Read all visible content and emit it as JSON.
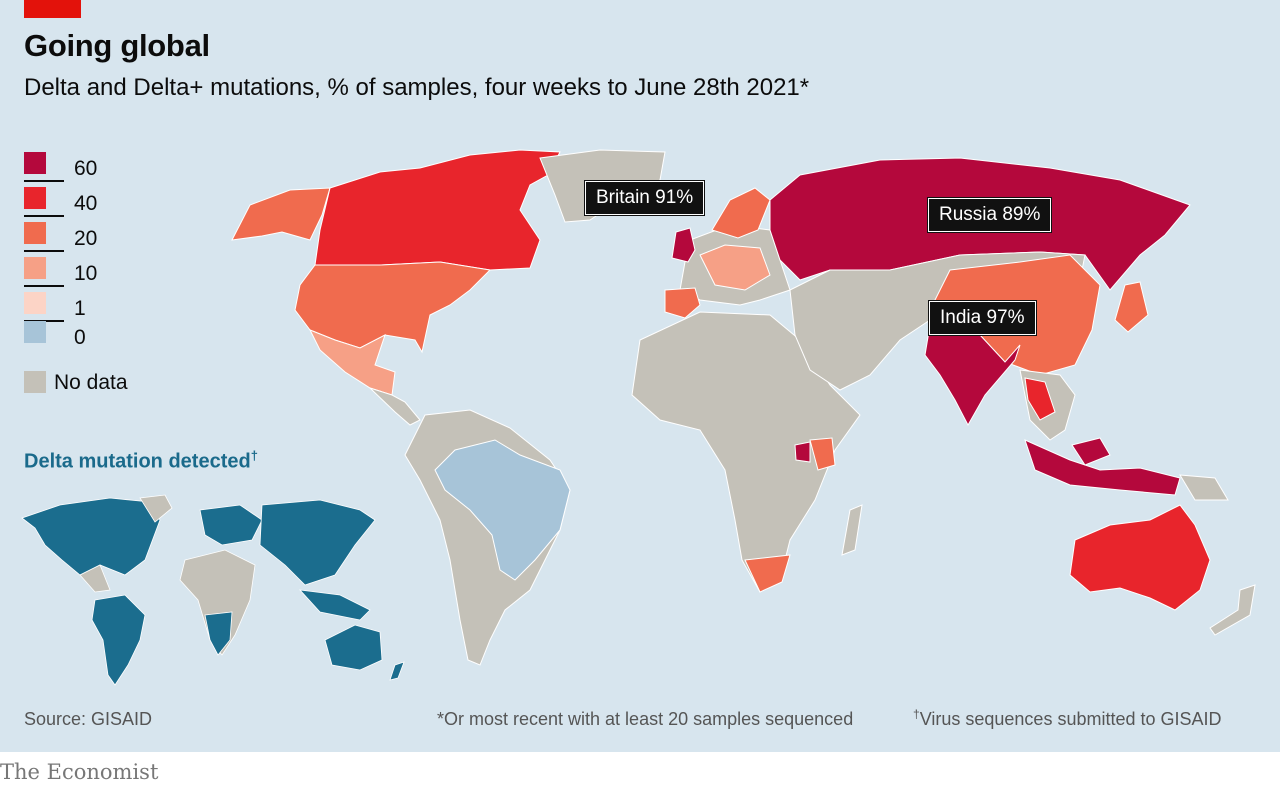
{
  "header": {
    "title": "Going global",
    "subtitle": "Delta and Delta+ mutations, % of samples, four weeks to June 28th 2021*"
  },
  "legend": {
    "items": [
      {
        "label": "60",
        "color": "#b4083c"
      },
      {
        "label": "40",
        "color": "#e8252c"
      },
      {
        "label": "20",
        "color": "#f06b4e"
      },
      {
        "label": "10",
        "color": "#f6a086"
      },
      {
        "label": "1",
        "color": "#fcd4c6"
      },
      {
        "label": "0",
        "color": "#a7c4d8"
      }
    ],
    "no_data_label": "No data",
    "no_data_color": "#c4c1b8"
  },
  "callouts": {
    "britain": "Britain 91%",
    "russia": "Russia 89%",
    "india": "India 97%"
  },
  "inset": {
    "title": "Delta mutation detected",
    "dagger": "†",
    "detected_color": "#1b6d8e"
  },
  "footer": {
    "source": "Source: GISAID",
    "note_star": "*Or most recent with at least 20 samples sequenced",
    "note_dagger_mark": "†",
    "note_dagger": "Virus sequences submitted to GISAID",
    "brand": "The Economist"
  }
}
